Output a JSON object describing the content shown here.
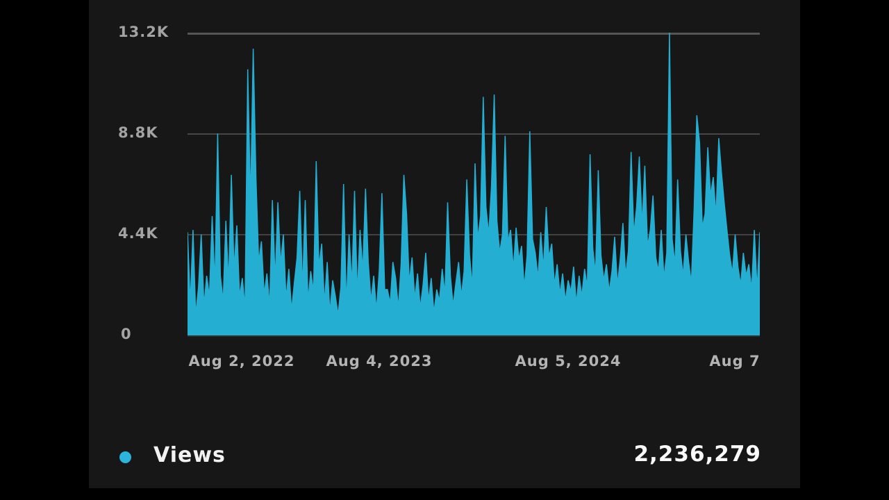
{
  "panel": {
    "background": "#171717",
    "letterbox_color": "#000000"
  },
  "legend": {
    "label": "Views",
    "dot_color": "#2ab5dc",
    "total": "2,236,279"
  },
  "chart_data": {
    "type": "area",
    "series_name": "Views",
    "units": "views per day (approximate, read from pixels)",
    "color": "#24aed2",
    "grid": "horizontal gridlines on",
    "legend_position": "bottom-left",
    "total_views": "2,236,279",
    "ylim": [
      0,
      13200
    ],
    "ytick_values": [
      0,
      4400,
      8800,
      13200
    ],
    "ytick_labels": [
      "0",
      "4.4K",
      "8.8K",
      "13.2K"
    ],
    "x_tick_labels": [
      "Aug 2, 2022",
      "Aug 4, 2023",
      "Aug 5, 2024",
      "Aug 7"
    ],
    "x_range": [
      "Aug 2, 2022",
      "Aug 7 (2025)"
    ],
    "values": [
      4500,
      1400,
      4600,
      900,
      2100,
      4400,
      1300,
      2600,
      1700,
      5200,
      2200,
      8800,
      2600,
      1500,
      5000,
      2300,
      7000,
      2900,
      4800,
      1700,
      2500,
      1200,
      11600,
      5800,
      12500,
      6800,
      3200,
      4100,
      1800,
      2700,
      1300,
      5900,
      2400,
      5800,
      3100,
      4400,
      1600,
      2900,
      1100,
      2300,
      3400,
      6300,
      2000,
      5900,
      1500,
      2800,
      1900,
      7600,
      3000,
      4000,
      1400,
      3200,
      1000,
      2400,
      1700,
      900,
      2100,
      6600,
      1300,
      4400,
      2200,
      6300,
      1800,
      4600,
      2800,
      6400,
      3200,
      1500,
      2600,
      1100,
      2800,
      6200,
      2000,
      2000,
      1400,
      3200,
      2500,
      1200,
      3100,
      7000,
      5300,
      2300,
      3400,
      1600,
      2700,
      1200,
      2200,
      3600,
      1500,
      2500,
      1000,
      2000,
      1500,
      2900,
      1800,
      5800,
      2600,
      1300,
      2300,
      3200,
      1700,
      2800,
      6800,
      3500,
      2100,
      7500,
      4200,
      5200,
      10400,
      5600,
      4400,
      6500,
      10500,
      5000,
      3600,
      4400,
      8700,
      4100,
      4600,
      2900,
      4700,
      3300,
      3900,
      2100,
      3500,
      8900,
      4200,
      3600,
      2500,
      4500,
      2900,
      5600,
      3400,
      4000,
      2200,
      3100,
      1800,
      2700,
      1500,
      2400,
      1900,
      3000,
      1400,
      2600,
      1700,
      2900,
      2100,
      7900,
      3800,
      2700,
      7200,
      3500,
      2400,
      3100,
      1900,
      2800,
      4300,
      2200,
      3300,
      4900,
      2600,
      3700,
      8000,
      4400,
      5600,
      7800,
      4800,
      7400,
      3900,
      4600,
      6100,
      3400,
      2800,
      4600,
      2500,
      3600,
      13200,
      4200,
      3100,
      6800,
      3700,
      2600,
      4400,
      3200,
      2300,
      5500,
      9600,
      8400,
      4700,
      5300,
      8200,
      6100,
      6900,
      5200,
      8600,
      7100,
      5800,
      4600,
      3500,
      2700,
      4400,
      3000,
      2200,
      3600,
      2600,
      3100,
      2000,
      4600,
      2000,
      4500
    ]
  }
}
